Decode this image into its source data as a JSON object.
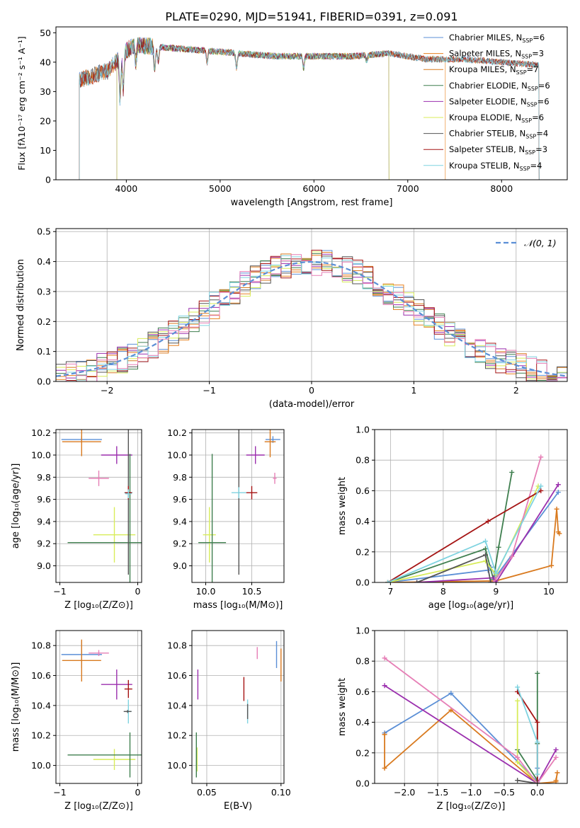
{
  "figure": {
    "title": "PLATE=0290, MJD=51941, FIBERID=0391, z=0.091"
  },
  "colors": {
    "Chabrier MILES": "#5b8fd6",
    "Salpeter MILES": "#e8801e",
    "Kroupa MILES": "#d97a1f",
    "Chabrier ELODIE": "#3f7f4f",
    "Salpeter ELODIE": "#9b2fae",
    "Kroupa ELODIE": "#d8ec5a",
    "Chabrier STELIB": "#555555",
    "Salpeter STELIB": "#a51414",
    "Kroupa STELIB": "#7fd3e0",
    "Pink": "#e67fb6",
    "grid": "#b0b0b0"
  },
  "legend_spectrum": [
    {
      "model": "Chabrier MILES",
      "label": "Chabrier MILES, N",
      "sub": "SSP",
      "tail": "=6"
    },
    {
      "model": "Salpeter MILES",
      "label": "Salpeter MILES, N",
      "sub": "SSP",
      "tail": "=3"
    },
    {
      "model": "Kroupa MILES",
      "label": "Kroupa MILES, N",
      "sub": "SSP",
      "tail": "=7"
    },
    {
      "model": "Chabrier ELODIE",
      "label": "Chabrier ELODIE, N",
      "sub": "SSP",
      "tail": "=6"
    },
    {
      "model": "Salpeter ELODIE",
      "label": "Salpeter ELODIE, N",
      "sub": "SSP",
      "tail": "=6"
    },
    {
      "model": "Kroupa ELODIE",
      "label": "Kroupa ELODIE, N",
      "sub": "SSP",
      "tail": "=6"
    },
    {
      "model": "Chabrier STELIB",
      "label": "Chabrier STELIB, N",
      "sub": "SSP",
      "tail": "=4"
    },
    {
      "model": "Salpeter STELIB",
      "label": "Salpeter STELIB, N",
      "sub": "SSP",
      "tail": "=3"
    },
    {
      "model": "Kroupa STELIB",
      "label": "Kroupa STELIB, N",
      "sub": "SSP",
      "tail": "=4"
    }
  ],
  "legend_hist": {
    "label": "𝒩(0, 1)"
  },
  "chart_data": [
    {
      "type": "line",
      "id": "spectrum",
      "xlabel": "wavelength [Angstrom, rest frame]",
      "ylabel": "Flux [fλ10⁻¹⁷ erg cm⁻² s⁻¹ A⁻¹]",
      "xlim": [
        3250,
        8700
      ],
      "ylim": [
        0,
        52
      ],
      "xticks": [
        4000,
        5000,
        6000,
        7000,
        8000
      ],
      "yticks": [
        0,
        10,
        20,
        30,
        40,
        50
      ],
      "continuum": {
        "x": [
          3500,
          3800,
          4000,
          4100,
          4400,
          4800,
          5200,
          5600,
          6000,
          6400,
          6800,
          7200,
          7600,
          8000,
          8400
        ],
        "y": [
          34,
          37,
          44,
          46,
          45,
          44,
          43,
          42,
          42,
          42,
          43,
          41,
          41,
          40,
          39
        ]
      },
      "model_ranges": [
        {
          "model": "Chabrier MILES",
          "x": [
            3500,
            8400
          ]
        },
        {
          "model": "Salpeter MILES",
          "x": [
            3500,
            7400
          ]
        },
        {
          "model": "Kroupa MILES",
          "x": [
            3500,
            8400
          ]
        },
        {
          "model": "Chabrier ELODIE",
          "x": [
            3900,
            6800
          ]
        },
        {
          "model": "Salpeter ELODIE",
          "x": [
            3900,
            6800
          ]
        },
        {
          "model": "Kroupa ELODIE",
          "x": [
            3900,
            6800
          ]
        },
        {
          "model": "Chabrier STELIB",
          "x": [
            3500,
            8400
          ]
        },
        {
          "model": "Salpeter STELIB",
          "x": [
            3500,
            8400
          ]
        },
        {
          "model": "Kroupa STELIB",
          "x": [
            3500,
            8400
          ]
        }
      ]
    },
    {
      "type": "histogram",
      "id": "residuals",
      "xlabel": "(data-model)/error",
      "ylabel": "Normed distribution",
      "xlim": [
        -2.5,
        2.5
      ],
      "ylim": [
        0,
        0.51
      ],
      "xticks": [
        -2,
        -1,
        0,
        1,
        2
      ],
      "yticks": [
        0.0,
        0.1,
        0.2,
        0.3,
        0.4,
        0.5
      ],
      "bin_width": 0.1,
      "bin_start": -2.5,
      "series_models": [
        "Chabrier MILES",
        "Salpeter MILES",
        "Kroupa MILES",
        "Chabrier ELODIE",
        "Salpeter ELODIE",
        "Kroupa ELODIE",
        "Chabrier STELIB",
        "Salpeter STELIB",
        "Kroupa STELIB",
        "Pink"
      ],
      "reference": {
        "name": "𝒩(0, 1)",
        "mu": 0,
        "sigma": 1
      }
    },
    {
      "type": "scatter",
      "id": "age-vs-Z",
      "xlabel": "Z [log₁₀(Z/Z⊙)]",
      "ylabel": "age  [log₁₀(age/yr)]",
      "xlim": [
        -1.05,
        0.05
      ],
      "ylim": [
        8.85,
        10.23
      ],
      "xticks": [
        -1,
        0
      ],
      "yticks": [
        9.0,
        9.2,
        9.4,
        9.6,
        9.8,
        10.0,
        10.2
      ],
      "points": [
        {
          "model": "Chabrier MILES",
          "x": -0.72,
          "y": 10.14,
          "xerr": 0.26,
          "yerr": 0.03
        },
        {
          "model": "Kroupa MILES",
          "x": -0.72,
          "y": 10.12,
          "xerr": 0.25,
          "yerr": 0.13
        },
        {
          "model": "Salpeter ELODIE",
          "x": -0.27,
          "y": 10.0,
          "xerr": 0.2,
          "yerr": 0.08
        },
        {
          "model": "Pink",
          "x": -0.5,
          "y": 9.79,
          "xerr": 0.13,
          "yerr": 0.07
        },
        {
          "model": "Kroupa ELODIE",
          "x": -0.3,
          "y": 9.28,
          "xerr": 0.27,
          "yerr": 0.25
        },
        {
          "model": "Chabrier ELODIE",
          "x": -0.1,
          "y": 9.21,
          "xerr": 0.8,
          "yerr": 0.8
        },
        {
          "model": "Chabrier STELIB",
          "x": -0.12,
          "y": 9.66,
          "xerr": 0.05,
          "yerr": 0.74
        },
        {
          "model": "Salpeter STELIB",
          "x": -0.12,
          "y": 9.66,
          "xerr": 0.04,
          "yerr": 0.06
        },
        {
          "model": "Kroupa STELIB",
          "x": -0.12,
          "y": 9.65,
          "xerr": 0.04,
          "yerr": 0.04
        }
      ]
    },
    {
      "type": "scatter",
      "id": "age-vs-mass",
      "xlabel": "mass [log₁₀(M/M⊙)]",
      "ylabel": "",
      "xlim": [
        9.85,
        10.85
      ],
      "ylim": [
        8.85,
        10.23
      ],
      "xticks": [
        10.0,
        10.5
      ],
      "yticks": [
        9.0,
        9.2,
        9.4,
        9.6,
        9.8,
        10.0,
        10.2
      ],
      "points": [
        {
          "model": "Chabrier MILES",
          "x": 10.73,
          "y": 10.14,
          "xerr": 0.08,
          "yerr": 0.03
        },
        {
          "model": "Kroupa MILES",
          "x": 10.7,
          "y": 10.12,
          "xerr": 0.06,
          "yerr": 0.14
        },
        {
          "model": "Salpeter ELODIE",
          "x": 10.54,
          "y": 10.0,
          "xerr": 0.1,
          "yerr": 0.08
        },
        {
          "model": "Pink",
          "x": 10.75,
          "y": 9.79,
          "xerr": 0.02,
          "yerr": 0.05
        },
        {
          "model": "Kroupa ELODIE",
          "x": 10.04,
          "y": 9.28,
          "xerr": 0.07,
          "yerr": 0.25
        },
        {
          "model": "Chabrier ELODIE",
          "x": 10.07,
          "y": 9.21,
          "xerr": 0.15,
          "yerr": 0.8
        },
        {
          "model": "Chabrier STELIB",
          "x": 10.36,
          "y": 9.66,
          "xerr": 0.01,
          "yerr": 0.74
        },
        {
          "model": "Salpeter STELIB",
          "x": 10.5,
          "y": 9.66,
          "xerr": 0.06,
          "yerr": 0.06
        },
        {
          "model": "Kroupa STELIB",
          "x": 10.36,
          "y": 9.66,
          "xerr": 0.08,
          "yerr": 0.05
        }
      ]
    },
    {
      "type": "line",
      "id": "mass-weight-vs-age",
      "xlabel": "age  [log₁₀(age/yr)]",
      "ylabel": "mass weight",
      "xlim": [
        6.7,
        10.35
      ],
      "ylim": [
        0,
        1.0
      ],
      "xticks": [
        7,
        8,
        9,
        10
      ],
      "yticks": [
        0.0,
        0.2,
        0.4,
        0.6,
        0.8,
        1.0
      ],
      "series": [
        {
          "model": "Chabrier MILES",
          "x": [
            6.95,
            8.85,
            8.9,
            9.0,
            10.18
          ],
          "y": [
            0.0,
            0.08,
            0.1,
            0.04,
            0.59
          ]
        },
        {
          "model": "Kroupa MILES",
          "x": [
            6.95,
            9.0,
            10.05,
            10.15,
            10.18,
            10.2
          ],
          "y": [
            0.0,
            0.01,
            0.11,
            0.48,
            0.33,
            0.32
          ]
        },
        {
          "model": "Chabrier ELODIE",
          "x": [
            6.95,
            8.8,
            8.95,
            9.05,
            9.3
          ],
          "y": [
            0.0,
            0.22,
            0.02,
            0.23,
            0.72
          ]
        },
        {
          "model": "Salpeter ELODIE",
          "x": [
            7.5,
            8.95,
            9.0,
            10.18
          ],
          "y": [
            0.0,
            0.03,
            0.0,
            0.64
          ]
        },
        {
          "model": "Kroupa ELODIE",
          "x": [
            6.95,
            8.8,
            9.0,
            9.8
          ],
          "y": [
            0.0,
            0.14,
            0.05,
            0.63
          ]
        },
        {
          "model": "Pink",
          "x": [
            8.95,
            9.3,
            9.85
          ],
          "y": [
            0.0,
            0.17,
            0.82
          ]
        },
        {
          "model": "Salpeter STELIB",
          "x": [
            6.95,
            8.85,
            9.85
          ],
          "y": [
            0.0,
            0.4,
            0.6
          ]
        },
        {
          "model": "Chabrier STELIB",
          "x": [
            7.5,
            8.8,
            8.9
          ],
          "y": [
            0.0,
            0.18,
            0.0
          ]
        },
        {
          "model": "Kroupa STELIB",
          "x": [
            6.95,
            8.8,
            9.0,
            9.85
          ],
          "y": [
            0.0,
            0.27,
            0.06,
            0.63
          ]
        }
      ]
    },
    {
      "type": "scatter",
      "id": "mass-vs-Z",
      "xlabel": "Z [log₁₀(Z/Z⊙)]",
      "ylabel": "mass [log₁₀(M/M⊙)]",
      "xlim": [
        -1.05,
        0.05
      ],
      "ylim": [
        9.88,
        10.9
      ],
      "xticks": [
        -1,
        0
      ],
      "yticks": [
        10.0,
        10.2,
        10.4,
        10.6,
        10.8
      ],
      "points": [
        {
          "model": "Chabrier MILES",
          "x": -0.72,
          "y": 10.74,
          "xerr": 0.26,
          "yerr": 0.09
        },
        {
          "model": "Kroupa MILES",
          "x": -0.72,
          "y": 10.7,
          "xerr": 0.25,
          "yerr": 0.14
        },
        {
          "model": "Pink",
          "x": -0.5,
          "y": 10.75,
          "xerr": 0.13,
          "yerr": 0.02
        },
        {
          "model": "Salpeter ELODIE",
          "x": -0.27,
          "y": 10.54,
          "xerr": 0.2,
          "yerr": 0.1
        },
        {
          "model": "Salpeter STELIB",
          "x": -0.12,
          "y": 10.51,
          "xerr": 0.05,
          "yerr": 0.06
        },
        {
          "model": "Kroupa STELIB",
          "x": -0.12,
          "y": 10.36,
          "xerr": 0.04,
          "yerr": 0.08
        },
        {
          "model": "Chabrier STELIB",
          "x": -0.13,
          "y": 10.36,
          "xerr": 0.05,
          "yerr": 0.01
        },
        {
          "model": "Kroupa ELODIE",
          "x": -0.3,
          "y": 10.04,
          "xerr": 0.27,
          "yerr": 0.07
        },
        {
          "model": "Chabrier ELODIE",
          "x": -0.1,
          "y": 10.07,
          "xerr": 0.8,
          "yerr": 0.15
        }
      ]
    },
    {
      "type": "scatter",
      "id": "mass-vs-EBV",
      "xlabel": "E(B-V)",
      "ylabel": "",
      "xlim": [
        0.04,
        0.102
      ],
      "ylim": [
        9.88,
        10.9
      ],
      "xticks": [
        0.05,
        0.1
      ],
      "yticks": [
        10.0,
        10.2,
        10.4,
        10.6,
        10.8
      ],
      "points": [
        {
          "model": "Chabrier MILES",
          "x": 0.097,
          "y": 10.74,
          "xerr": 0.0,
          "yerr": 0.09
        },
        {
          "model": "Kroupa MILES",
          "x": 0.1,
          "y": 10.67,
          "xerr": 0.0,
          "yerr": 0.11
        },
        {
          "model": "Pink",
          "x": 0.084,
          "y": 10.75,
          "xerr": 0.0,
          "yerr": 0.04
        },
        {
          "model": "Salpeter ELODIE",
          "x": 0.044,
          "y": 10.54,
          "xerr": 0.0,
          "yerr": 0.1
        },
        {
          "model": "Salpeter STELIB",
          "x": 0.075,
          "y": 10.51,
          "xerr": 0.0,
          "yerr": 0.08
        },
        {
          "model": "Kroupa STELIB",
          "x": 0.0775,
          "y": 10.36,
          "xerr": 0.0,
          "yerr": 0.08
        },
        {
          "model": "Chabrier STELIB",
          "x": 0.0775,
          "y": 10.36,
          "xerr": 0.0,
          "yerr": 0.05
        },
        {
          "model": "Kroupa ELODIE",
          "x": 0.0435,
          "y": 10.04,
          "xerr": 0.0,
          "yerr": 0.08
        },
        {
          "model": "Chabrier ELODIE",
          "x": 0.043,
          "y": 10.07,
          "xerr": 0.0,
          "yerr": 0.15
        }
      ]
    },
    {
      "type": "line",
      "id": "mass-weight-vs-Z",
      "xlabel": "Z [log₁₀(Z/Z⊙)]",
      "ylabel": "mass weight",
      "xlim": [
        -2.45,
        0.45
      ],
      "ylim": [
        0,
        1.0
      ],
      "xticks": [
        -2.0,
        -1.5,
        -1.0,
        -0.5,
        0.0
      ],
      "yticks": [
        0.0,
        0.2,
        0.4,
        0.6,
        0.8,
        1.0
      ],
      "series": [
        {
          "model": "Chabrier MILES",
          "x": [
            -2.3,
            -1.3,
            0.0,
            0.0
          ],
          "y": [
            0.33,
            0.59,
            0.01,
            0.1
          ]
        },
        {
          "model": "Kroupa MILES",
          "x": [
            -2.3,
            -2.3,
            -1.3,
            0.0,
            0.28,
            0.3,
            0.28
          ],
          "y": [
            0.32,
            0.1,
            0.48,
            0.0,
            0.01,
            0.07,
            0.02
          ]
        },
        {
          "model": "Chabrier ELODIE",
          "x": [
            -0.3,
            0.0,
            0.0,
            0.0
          ],
          "y": [
            0.22,
            0.02,
            0.72,
            0.26
          ]
        },
        {
          "model": "Salpeter ELODIE",
          "x": [
            -2.3,
            0.0,
            0.28
          ],
          "y": [
            0.64,
            0.0,
            0.22
          ]
        },
        {
          "model": "Kroupa ELODIE",
          "x": [
            -0.3,
            -0.3,
            0.0
          ],
          "y": [
            0.54,
            0.14,
            0.0
          ]
        },
        {
          "model": "Pink",
          "x": [
            -2.3,
            -0.3,
            0.0,
            0.28
          ],
          "y": [
            0.82,
            0.17,
            0.0,
            0.17
          ]
        },
        {
          "model": "Salpeter STELIB",
          "x": [
            -0.3,
            0.0,
            0.0
          ],
          "y": [
            0.6,
            0.4,
            0.0
          ]
        },
        {
          "model": "Chabrier STELIB",
          "x": [
            -0.3,
            0.0
          ],
          "y": [
            0.02,
            0.0
          ]
        },
        {
          "model": "Kroupa STELIB",
          "x": [
            -0.3,
            0.0,
            0.0
          ],
          "y": [
            0.63,
            0.27,
            0.06
          ]
        }
      ]
    }
  ]
}
